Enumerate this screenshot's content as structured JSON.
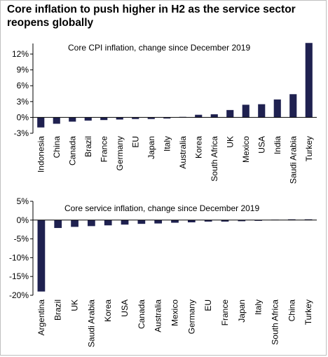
{
  "title": "Core inflation to push higher in H2 as the service sector reopens globally",
  "colors": {
    "bar": "#1f2150",
    "axis": "#000000",
    "frame": "#bfbfbf"
  },
  "chart_data": [
    {
      "type": "bar",
      "title": "Core CPI inflation, change since December 2019",
      "categories": [
        "Indonesia",
        "China",
        "Canada",
        "Brazil",
        "France",
        "Germany",
        "EU",
        "Japan",
        "Italy",
        "Australia",
        "Korea",
        "South Africa",
        "UK",
        "Mexico",
        "USA",
        "India",
        "Saudi Arabia",
        "Turkey"
      ],
      "values": [
        -1.9,
        -1.2,
        -0.8,
        -0.6,
        -0.5,
        -0.4,
        -0.3,
        -0.3,
        -0.2,
        0.1,
        0.5,
        0.6,
        1.4,
        2.4,
        2.5,
        3.4,
        4.4,
        14.1
      ],
      "ylim": [
        -3,
        14
      ],
      "yticks": [
        -3,
        0,
        3,
        6,
        9,
        12
      ],
      "ytick_labels": [
        "-3%",
        "0%",
        "3%",
        "6%",
        "9%",
        "12%"
      ],
      "xlabel": "",
      "ylabel": "",
      "grid": false,
      "legend": "none"
    },
    {
      "type": "bar",
      "title": "Core service inflation, change since December 2019",
      "categories": [
        "Argentina",
        "Brazil",
        "UK",
        "Saudi Arabia",
        "Korea",
        "USA",
        "Canada",
        "Australia",
        "Mexico",
        "Germany",
        "EU",
        "France",
        "Japan",
        "Italy",
        "South Africa",
        "China",
        "Turkey"
      ],
      "values": [
        -19.0,
        -2.1,
        -1.8,
        -1.6,
        -1.4,
        -1.2,
        -1.0,
        -0.9,
        -0.7,
        -0.6,
        -0.4,
        -0.4,
        -0.3,
        -0.2,
        0.1,
        0.2,
        0.2
      ],
      "ylim": [
        -20,
        5
      ],
      "yticks": [
        -20,
        -15,
        -10,
        -5,
        0,
        5
      ],
      "ytick_labels": [
        "-20%",
        "-15%",
        "-10%",
        "-5%",
        "0%",
        "5%"
      ],
      "xlabel": "",
      "ylabel": "",
      "grid": false,
      "legend": "none"
    }
  ]
}
